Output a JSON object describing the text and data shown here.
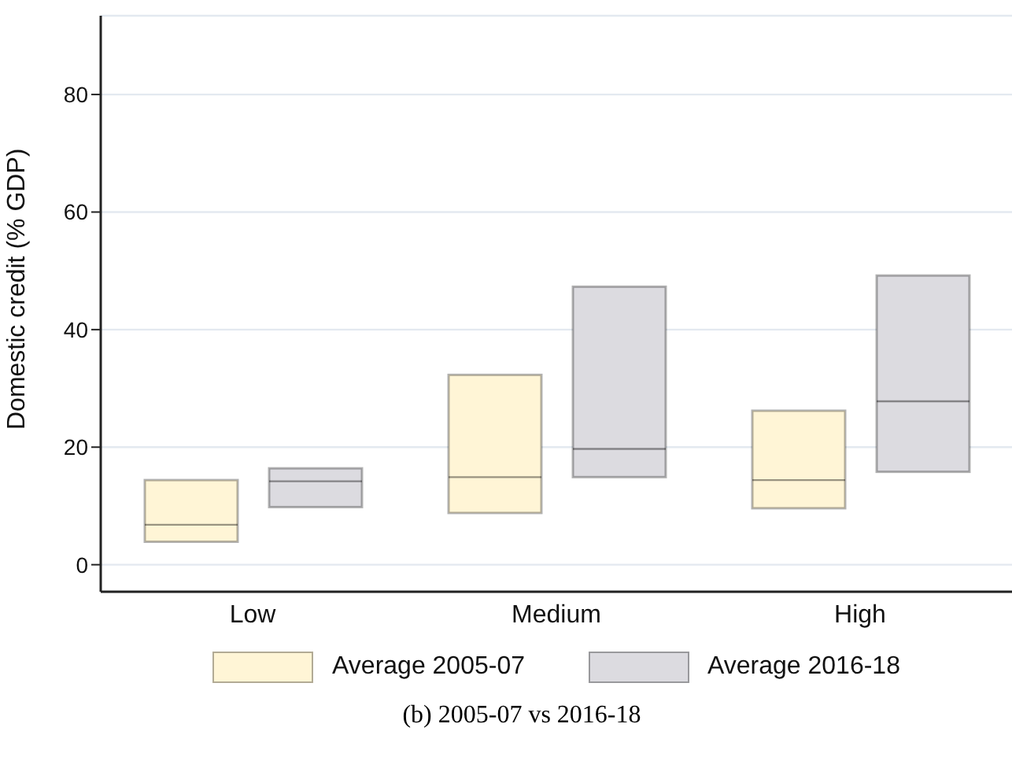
{
  "chart_data": {
    "type": "box",
    "ylabel": "Domestic credit (% GDP)",
    "categories": [
      "Low",
      "Medium",
      "High"
    ],
    "series": [
      {
        "name": "Average 2005-07",
        "color": "#fff5d6",
        "boxes": [
          {
            "low": 3.9,
            "q1": 3.9,
            "median": 6.8,
            "q3": 14.4,
            "high": 14.4
          },
          {
            "low": 8.8,
            "q1": 8.8,
            "median": 14.9,
            "q3": 32.3,
            "high": 32.3
          },
          {
            "low": 9.6,
            "q1": 9.6,
            "median": 14.4,
            "q3": 26.2,
            "high": 26.2
          }
        ]
      },
      {
        "name": "Average 2016-18",
        "color": "#dcdbe0",
        "boxes": [
          {
            "low": 9.8,
            "q1": 9.8,
            "median": 14.2,
            "q3": 16.4,
            "high": 16.4
          },
          {
            "low": 14.9,
            "q1": 14.9,
            "median": 19.7,
            "q3": 47.3,
            "high": 47.3
          },
          {
            "low": 15.8,
            "q1": 15.8,
            "median": 27.8,
            "q3": 49.2,
            "high": 49.2
          }
        ]
      }
    ],
    "ylim": [
      -4.6,
      93.4
    ],
    "yticks": [
      0,
      20,
      40,
      60,
      80
    ],
    "grid": "y",
    "legend": "bottom",
    "annotations": [
      "(b) 2005-07 vs 2016-18"
    ]
  }
}
